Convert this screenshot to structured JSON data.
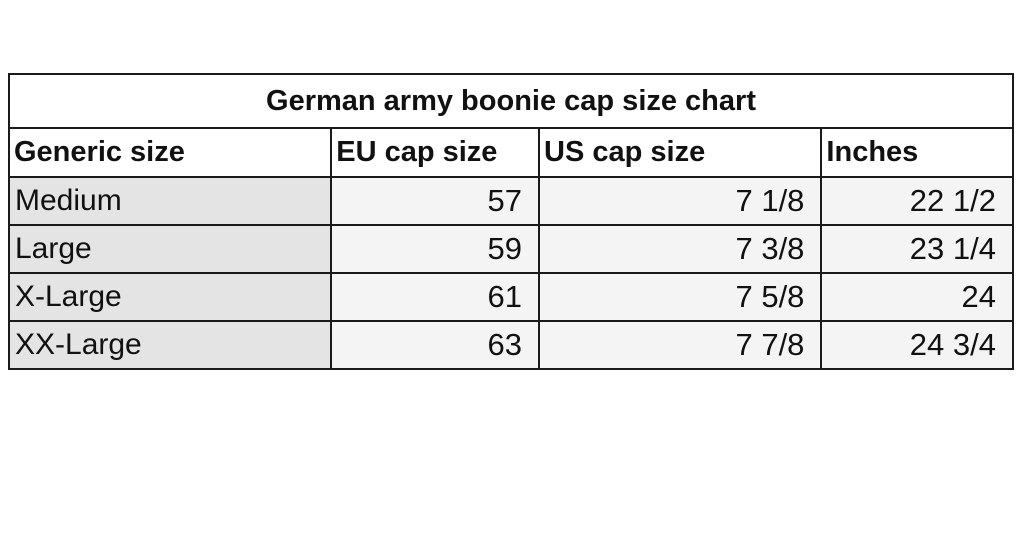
{
  "title": "German army boonie cap size chart",
  "headers": [
    "Generic size",
    "EU cap size",
    "US cap size",
    "Inches"
  ],
  "rows": [
    [
      "Medium",
      "57",
      "7 1/8",
      "22 1/2"
    ],
    [
      "Large",
      "59",
      "7 3/8",
      "23 1/4"
    ],
    [
      "X-Large",
      "61",
      "7 5/8",
      "24"
    ],
    [
      "XX-Large",
      "63",
      "7 7/8",
      "24 3/4"
    ]
  ],
  "colors": {
    "first_column_bg": "#e4e4e4",
    "cell_bg": "#f4f4f4",
    "border": "#1a1a1a"
  }
}
